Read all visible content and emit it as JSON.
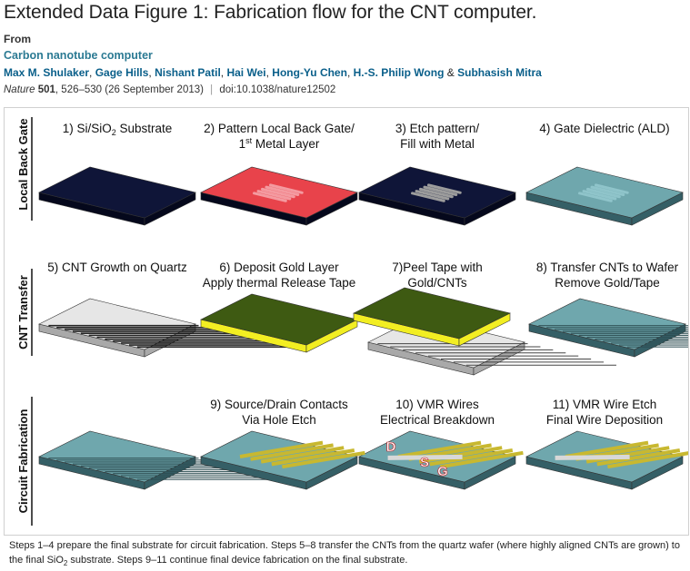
{
  "header": {
    "title": "Extended Data Figure 1: Fabrication flow for the CNT computer.",
    "from_label": "From",
    "article_title": "Carbon nanotube computer",
    "authors": [
      "Max M. Shulaker",
      "Gage Hills",
      "Nishant Patil",
      "Hai Wei",
      "Hong-Yu Chen",
      "H.-S. Philip Wong",
      "Subhasish Mitra"
    ],
    "author_separator": ",",
    "author_last_separator": "&",
    "citation": {
      "journal": "Nature",
      "volume": "501",
      "pages": ", 526–530 (26 September 2013)",
      "divider": "|",
      "doi": "doi:10.1038/nature12502"
    }
  },
  "figure": {
    "row_labels": [
      "Local Back Gate",
      "CNT Transfer",
      "Circuit Fabrication"
    ],
    "panels": [
      {
        "step": 1,
        "line1_a": "1) Si/SiO",
        "line1_sub": "2",
        "line1_b": " Substrate",
        "line2": ""
      },
      {
        "step": 2,
        "line1": "2) Pattern Local Back Gate/",
        "line2_sup": "st",
        "line2_a": "1",
        "line2_b": " Metal Layer"
      },
      {
        "step": 3,
        "line1": "3) Etch pattern/",
        "line2": "Fill with Metal"
      },
      {
        "step": 4,
        "line1": "4) Gate Dielectric (ALD)",
        "line2": ""
      },
      {
        "step": 5,
        "line1": "5) CNT Growth on Quartz",
        "line2": ""
      },
      {
        "step": 6,
        "line1": "6) Deposit Gold Layer",
        "line2": "Apply thermal Release Tape"
      },
      {
        "step": 7,
        "line1": "7)Peel Tape with",
        "line2": "Gold/CNTs"
      },
      {
        "step": 8,
        "line1": "8) Transfer CNTs to Wafer",
        "line2": "Remove Gold/Tape"
      },
      {
        "step": 9,
        "line1": "9) Source/Drain Contacts",
        "line2": "Via Hole Etch"
      },
      {
        "step": 10,
        "line1": "10) VMR Wires",
        "line2": "Electrical Breakdown"
      },
      {
        "step": 11,
        "line1": "11) VMR Wire Etch",
        "line2": "Final Wire Deposition"
      }
    ],
    "terminals": [
      "D",
      "S",
      "G"
    ],
    "colors": {
      "substrate": "#0f1538",
      "substrate_side": "#05081c",
      "gate_metal": "#e8434b",
      "dielectric": "#6fa7ad",
      "dielectric_side": "#355f66",
      "quartz": "#e6e6e6",
      "gold": "#f2ee22",
      "tape": "#3e5a12",
      "contact": "#c8b830",
      "terminal": "#c0141b"
    }
  },
  "caption": {
    "part1": "Steps 1–4 prepare the final substrate for circuit fabrication. Steps 5–8 transfer the CNTs from the quartz wafer (where highly aligned CNTs are grown) to the final SiO",
    "sub": "2",
    "part2": " substrate. Steps 9–11 continue final device fabrication on the final substrate."
  }
}
